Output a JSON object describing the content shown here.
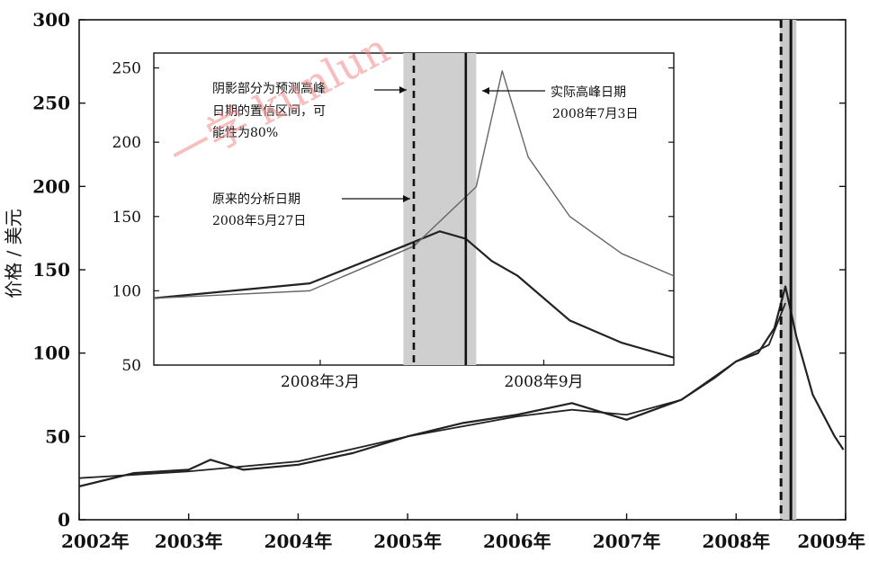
{
  "chart_data": [
    {
      "type": "line",
      "ylabel": "价格 / 美元",
      "ylim": [
        0,
        300
      ],
      "yticks": [
        0,
        50,
        100,
        150,
        200,
        250,
        300
      ],
      "xlim": [
        2002,
        2009
      ],
      "xtick_labels": [
        "2002年",
        "2003年",
        "2004年",
        "2005年",
        "2006年",
        "2007年",
        "2008年",
        "2009年"
      ],
      "series": [
        {
          "values_x": [
            2002.0,
            2002.5,
            2003.0,
            2003.2,
            2003.5,
            2004.0,
            2004.5,
            2005.0,
            2005.5,
            2006.0,
            2006.5,
            2007.0,
            2007.5,
            2007.8,
            2008.0,
            2008.2,
            2008.35,
            2008.45,
            2008.55,
            2008.7,
            2008.9,
            2008.98
          ],
          "values_y": [
            20,
            28,
            30,
            36,
            30,
            33,
            40,
            50,
            58,
            63,
            70,
            60,
            72,
            85,
            95,
            100,
            115,
            140,
            110,
            75,
            50,
            42
          ]
        },
        {
          "values_x": [
            2002.0,
            2003.0,
            2004.0,
            2005.0,
            2006.0,
            2006.5,
            2007.0,
            2007.5,
            2008.0,
            2008.3,
            2008.45
          ],
          "values_y": [
            25,
            29,
            35,
            50,
            62,
            66,
            63,
            72,
            95,
            105,
            130
          ]
        }
      ],
      "vertical_markers": [
        {
          "x": 2008.41,
          "style": "dashed"
        },
        {
          "x": 2008.5,
          "style": "solid"
        }
      ],
      "shaded_region": [
        2008.4,
        2008.55
      ]
    },
    {
      "type": "line",
      "inset": true,
      "ylim": [
        50,
        260
      ],
      "yticks": [
        50,
        100,
        150,
        200,
        250
      ],
      "xtick_labels": [
        "2008年3月",
        "2008年9月"
      ],
      "series": [
        {
          "values_x": [
            0.0,
            0.3,
            0.48,
            0.55,
            0.6,
            0.65,
            0.7,
            0.8,
            0.9,
            1.0
          ],
          "values_y": [
            95,
            105,
            130,
            140,
            135,
            120,
            110,
            80,
            65,
            55
          ]
        },
        {
          "values_x": [
            0.0,
            0.3,
            0.5,
            0.62,
            0.67,
            0.72,
            0.8,
            0.9,
            1.0
          ],
          "values_y": [
            95,
            100,
            130,
            170,
            248,
            190,
            150,
            125,
            110
          ]
        }
      ],
      "vertical_markers": [
        {
          "x": 0.5,
          "style": "dashed",
          "date": "2008年5月27日"
        },
        {
          "x": 0.6,
          "style": "solid",
          "date": "2008年7月3日"
        }
      ],
      "shaded_region": [
        0.48,
        0.62
      ],
      "annotations": {
        "shade_note_lines": [
          "阴影部分为预测高峰",
          "日期的置信区间，可",
          "能性为80%"
        ],
        "peak_label": "实际高峰日期",
        "peak_date": "2008年7月3日",
        "analysis_label": "原来的分析日期",
        "analysis_date": "2008年5月27日"
      }
    }
  ],
  "watermark": "一学 kunlun"
}
